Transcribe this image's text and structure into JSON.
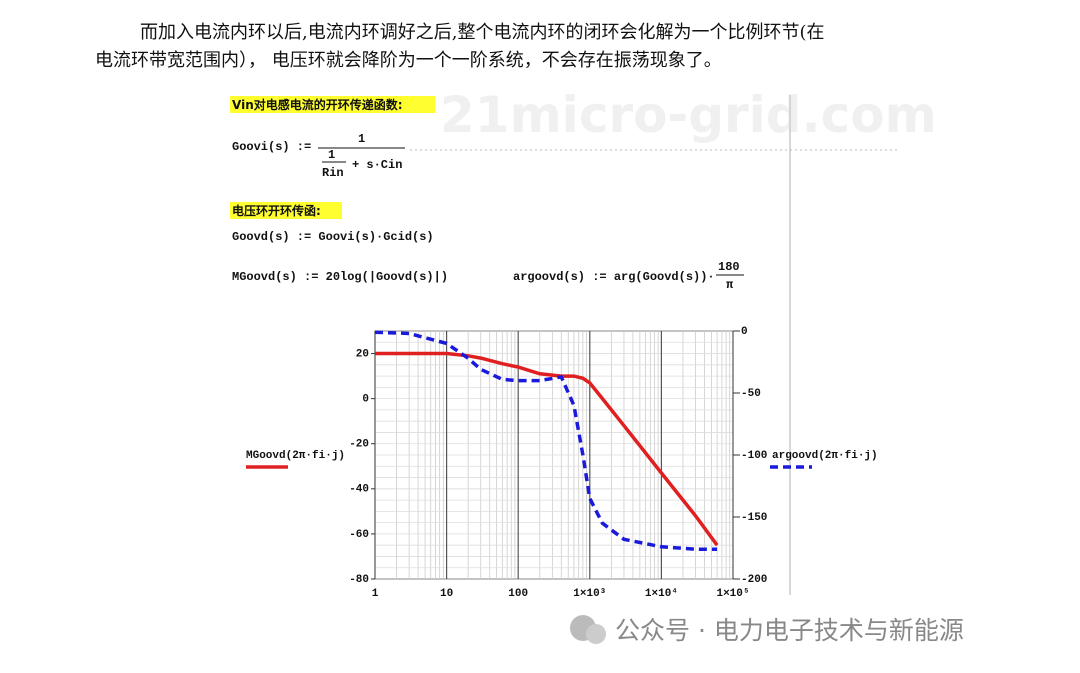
{
  "paragraph": [
    "而加入电流内环以后,电流内环调好之后,整个电流内环的闭环会化解为一个比例环节(在",
    "电流环带宽范围内）， 电压环就会降阶为一个一阶系统，不会存在振荡现象了。"
  ],
  "watermark": "21micro-grid.com",
  "mathcad": {
    "heading1": "Vin对电感电流的开环传递函数:",
    "eq1": {
      "lhs": "Goovi(s) :=",
      "num": "1",
      "den_num": "1",
      "den_den": "Rin",
      "den_rest": "+ s·Cin"
    },
    "heading2": "电压环开环传函:",
    "eq2": "Goovd(s) := Goovi(s)·Gcid(s)",
    "eq3": "MGoovd(s) := 20log(|Goovd(s)|)",
    "eq4": {
      "lhs": "argoovd(s) := arg(Goovd(s))·",
      "num": "180",
      "den": "π"
    }
  },
  "chart_data": {
    "type": "line",
    "xscale": "log",
    "grid": true,
    "x": [
      1,
      3,
      10,
      20,
      30,
      60,
      100,
      200,
      400,
      600,
      800,
      1000,
      1500,
      3000,
      10000,
      30000,
      60000
    ],
    "xlim": [
      1,
      100000
    ],
    "xticks": [
      1,
      10,
      100,
      {
        "value": 1000,
        "label": "1×10³"
      },
      {
        "value": 10000,
        "label": "1×10⁴"
      },
      {
        "value": 100000,
        "label": "1×10⁵"
      }
    ],
    "ylim": [
      -80,
      30
    ],
    "yticks": [
      -80,
      -60,
      -40,
      -20,
      0,
      20
    ],
    "y2lim": [
      -200,
      0
    ],
    "y2ticks": [
      -200,
      -150,
      -100,
      -50,
      0
    ],
    "series": [
      {
        "name": "MGoovd(2π·fi·j)",
        "color": "#e02020",
        "values": [
          20,
          20,
          20,
          19,
          18,
          15.5,
          14,
          11,
          10,
          10,
          9,
          7,
          0,
          -12,
          -33,
          -52,
          -65
        ]
      },
      {
        "name": "argoovd(2π·fi·j)",
        "color": "#1a1adc",
        "axis": "y2",
        "dash": true,
        "values": [
          -1,
          -2,
          -10,
          -22,
          -31,
          -39,
          -40,
          -40,
          -37,
          -60,
          -100,
          -135,
          -155,
          -168,
          -174,
          -176,
          -176
        ]
      }
    ]
  },
  "footer": "公众号 · 电力电子技术与新能源"
}
